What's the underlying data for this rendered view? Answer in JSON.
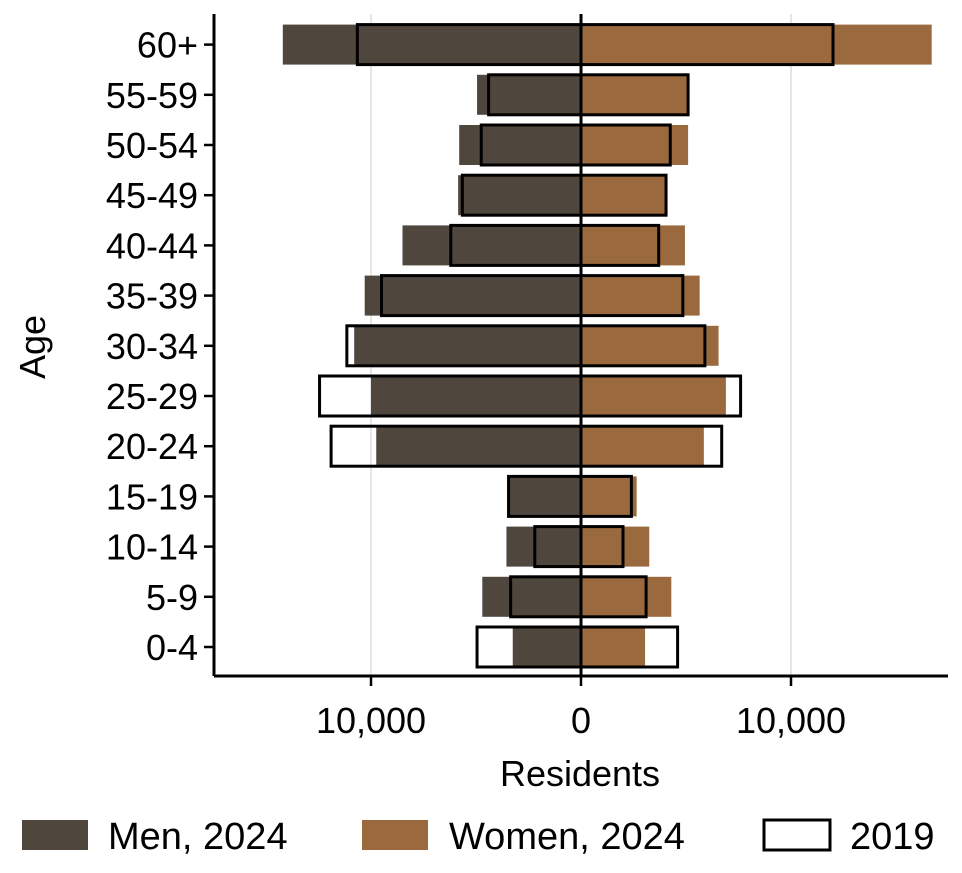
{
  "chart_data": {
    "type": "bar",
    "orientation": "horizontal",
    "subtype": "population-pyramid",
    "categories": [
      "0-4",
      "5-9",
      "10-14",
      "15-19",
      "20-24",
      "25-29",
      "30-34",
      "35-39",
      "40-44",
      "45-49",
      "50-54",
      "55-59",
      "60+"
    ],
    "series": [
      {
        "name": "Men, 2024",
        "side": "left",
        "color": "#4f463e",
        "values": [
          3250,
          4700,
          3550,
          3450,
          9750,
          10000,
          10800,
          10300,
          8500,
          5850,
          5800,
          4950,
          14200
        ]
      },
      {
        "name": "Women, 2024",
        "side": "right",
        "color": "#9a6a3e",
        "values": [
          3050,
          4300,
          3250,
          2650,
          5850,
          6900,
          6550,
          5650,
          4950,
          4050,
          5100,
          5050,
          16700
        ]
      },
      {
        "name": "2019",
        "style": "outline",
        "men": [
          4950,
          3350,
          2200,
          3450,
          11900,
          12450,
          11150,
          9500,
          6200,
          5650,
          4750,
          4400,
          10650
        ],
        "women": [
          4600,
          3100,
          2000,
          2400,
          6700,
          7600,
          5900,
          4850,
          3700,
          4050,
          4250,
          5100,
          12000
        ]
      }
    ],
    "xlabel": "Residents",
    "ylabel": "Age",
    "xlim": [
      -17500,
      17500
    ],
    "xticks": [
      {
        "value": -10000,
        "label": "10,000"
      },
      {
        "value": 0,
        "label": "0"
      },
      {
        "value": 10000,
        "label": "10,000"
      }
    ],
    "grid": "vertical",
    "legend_position": "bottom"
  }
}
